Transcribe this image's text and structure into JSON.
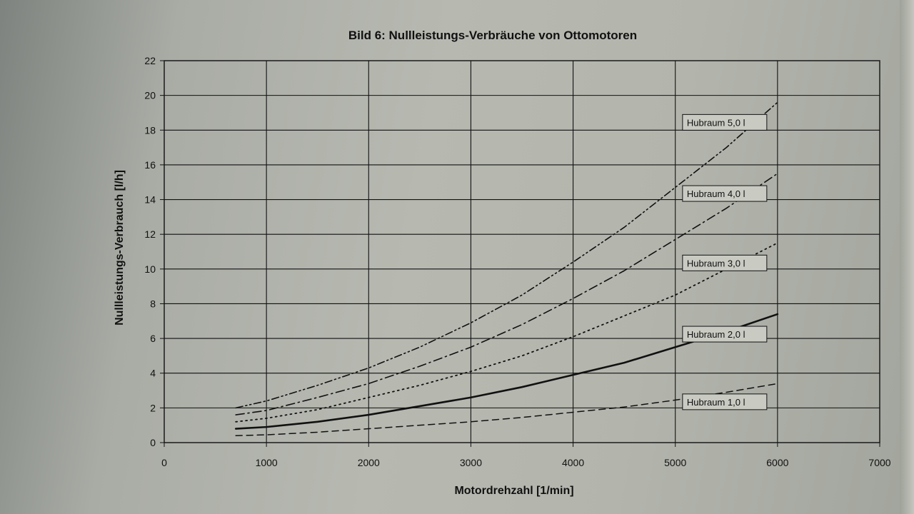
{
  "chart_data": {
    "type": "line",
    "title": "Bild 6: Nullleistungs-Verbräuche von Ottomotoren",
    "xlabel": "Motordrehzahl [1/min]",
    "ylabel": "Nullleistungs-Verbrauch [l/h]",
    "xlim": [
      0,
      7000
    ],
    "ylim": [
      0,
      22
    ],
    "x_ticks": [
      "0",
      "1000",
      "2000",
      "3000",
      "4000",
      "5000",
      "6000",
      "7000"
    ],
    "y_ticks": [
      "0",
      "2",
      "4",
      "6",
      "8",
      "10",
      "12",
      "14",
      "16",
      "18",
      "20",
      "22"
    ],
    "grid": true,
    "series": [
      {
        "name": "Hubraum 1,0 l",
        "dash": "long-dash",
        "x": [
          700,
          1000,
          1500,
          2000,
          2500,
          3000,
          3500,
          4000,
          4500,
          5000,
          5500,
          6000
        ],
        "y": [
          0.4,
          0.45,
          0.6,
          0.8,
          1.0,
          1.2,
          1.45,
          1.75,
          2.05,
          2.45,
          2.9,
          3.4
        ]
      },
      {
        "name": "Hubraum 2,0 l",
        "dash": "solid",
        "x": [
          700,
          1000,
          1500,
          2000,
          2500,
          3000,
          3500,
          4000,
          4500,
          5000,
          5500,
          6000
        ],
        "y": [
          0.8,
          0.9,
          1.2,
          1.6,
          2.1,
          2.6,
          3.2,
          3.9,
          4.6,
          5.5,
          6.4,
          7.4
        ]
      },
      {
        "name": "Hubraum 3,0 l",
        "dash": "dotted",
        "x": [
          700,
          1000,
          1500,
          2000,
          2500,
          3000,
          3500,
          4000,
          4500,
          5000,
          5500,
          6000
        ],
        "y": [
          1.2,
          1.4,
          1.9,
          2.6,
          3.3,
          4.1,
          5.0,
          6.1,
          7.3,
          8.5,
          10.0,
          11.5
        ]
      },
      {
        "name": "Hubraum 4,0 l",
        "dash": "dash-dot",
        "x": [
          700,
          1000,
          1500,
          2000,
          2500,
          3000,
          3500,
          4000,
          4500,
          5000,
          5500,
          6000
        ],
        "y": [
          1.6,
          1.85,
          2.6,
          3.4,
          4.4,
          5.5,
          6.8,
          8.3,
          9.9,
          11.7,
          13.5,
          15.5
        ]
      },
      {
        "name": "Hubraum 5,0 l",
        "dash": "dash-dot-dot",
        "x": [
          700,
          1000,
          1500,
          2000,
          2500,
          3000,
          3500,
          4000,
          4500,
          5000,
          5500,
          6000
        ],
        "y": [
          2.0,
          2.4,
          3.3,
          4.3,
          5.5,
          6.9,
          8.5,
          10.4,
          12.4,
          14.7,
          17.0,
          19.6
        ]
      }
    ],
    "legend_placement": "inline-right"
  }
}
